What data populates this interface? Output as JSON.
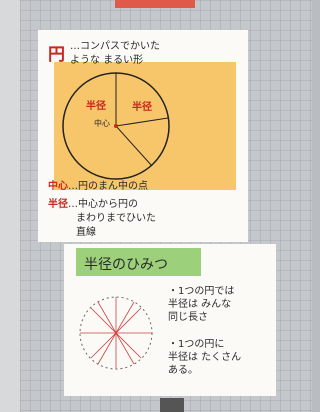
{
  "poster1": {
    "term": "円",
    "definition_lines": [
      "…コンパスでかいた",
      "ような まるい形"
    ],
    "circle_labels": [
      "半径",
      "半径",
      "中心"
    ],
    "definitions": [
      {
        "term": "中心",
        "lines": [
          "…円のまん中の点"
        ]
      },
      {
        "term": "半径",
        "lines": [
          "…中心から円の",
          "まわりまでひいた",
          "直線"
        ]
      }
    ]
  },
  "poster2": {
    "title": "半径のひみつ",
    "notes": [
      [
        "・1つの円では",
        "半径は みんな",
        "同じ長さ"
      ],
      [
        "・1つの円に",
        "半径は たくさん",
        "ある。"
      ]
    ]
  }
}
